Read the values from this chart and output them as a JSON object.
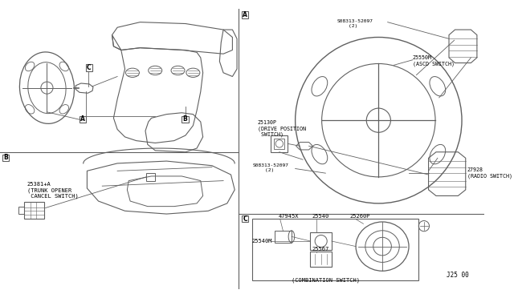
{
  "bg_color": "#ffffff",
  "line_color": "#606060",
  "part_number_bottom": "J25 00",
  "labels": {
    "ascd_switch": "25550M\n(ASCD SWITCH)",
    "drive_pos": "25130P\n(DRIVE POSITION\n SWITCH)",
    "radio_switch": "27928\n(RADIO SWITCH)",
    "trunk_switch": "25381+A\n(TRUNK OPENER\n CANCEL SWITCH)",
    "combo_switch": "(COMBINATION SWITCH)",
    "bolt1": "S08313-52097\n    (2)",
    "bolt2": "S08313-52097\n    (2)",
    "p47945x": "47945X",
    "p25540": "25540",
    "p25540m": "25540M",
    "p25567": "25567",
    "p25260p": "25260P"
  }
}
